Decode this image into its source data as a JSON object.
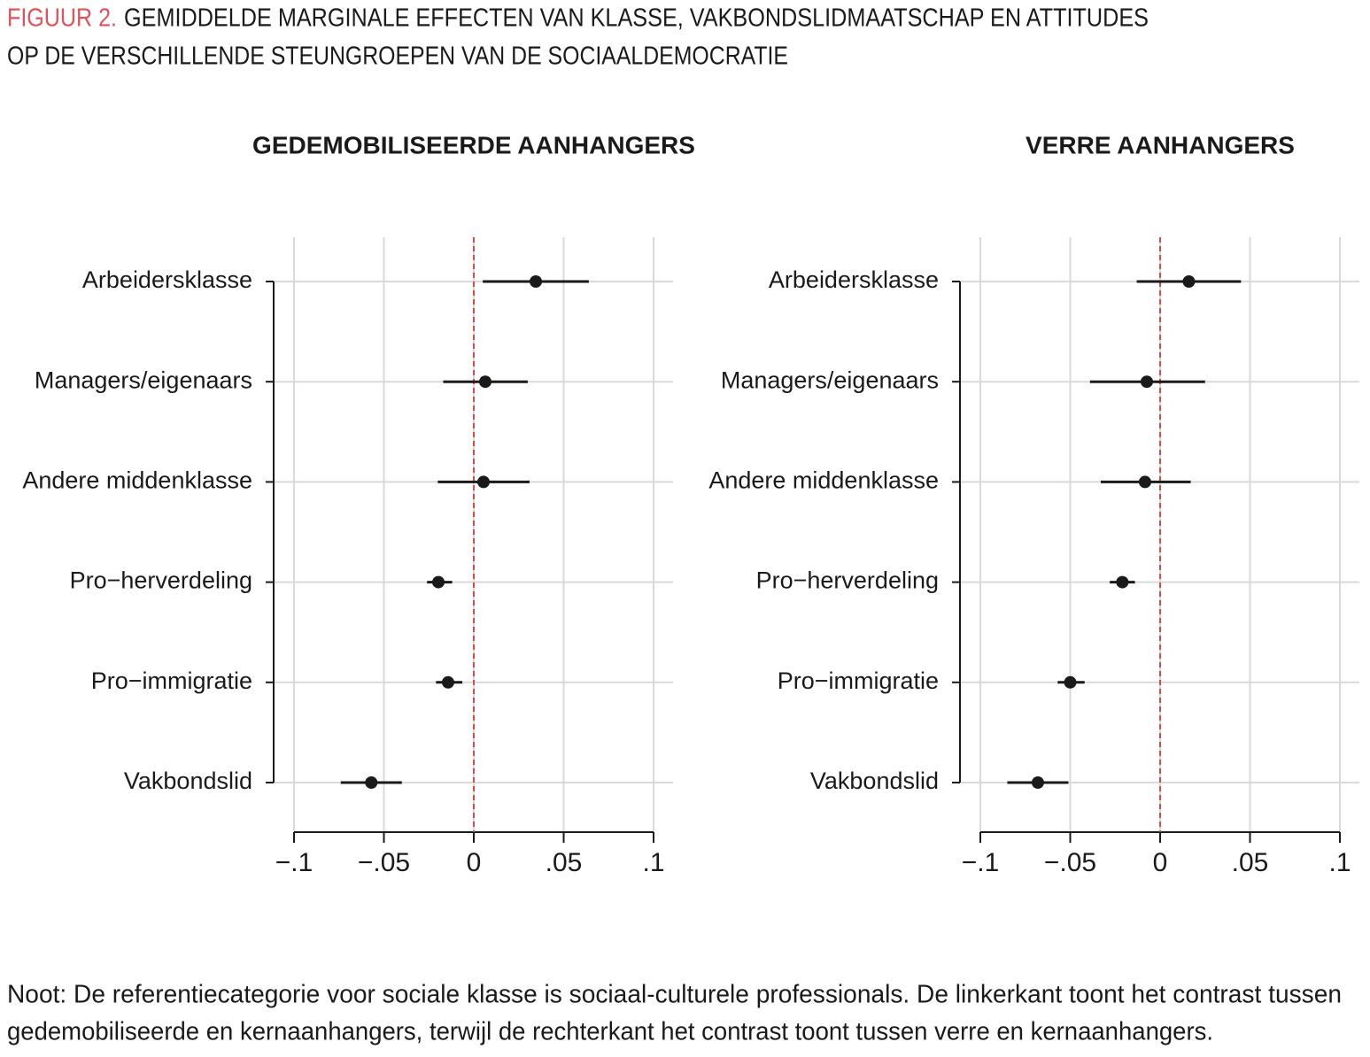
{
  "figure": {
    "label": "FIGUUR 2.",
    "title_lines": [
      "GEMIDDELDE MARGINALE EFFECTEN VAN KLASSE, VAKBONDSLIDMAATSCHAP EN ATTITUDES",
      "OP DE VERSCHILLENDE STEUNGROEPEN VAN DE SOCIAALDEMOCRATIE"
    ]
  },
  "note_lines": [
    "Noot: De referentiecategorie voor sociale klasse is sociaal-culturele professionals. De linkerkant toont het contrast tussen",
    "gedemobiliseerde en kernaanhangers, terwijl de rechterkant het contrast toont tussen verre en kernaanhangers."
  ],
  "chart_data": [
    {
      "type": "errorbar",
      "title": "GEDEMOBILISEERDE AANHANGERS",
      "categories": [
        "Arbeidersklasse",
        "Managers/eigenaars",
        "Andere middenklasse",
        "Pro−herverdeling",
        "Pro−immigratie",
        "Vakbondslid"
      ],
      "values": [
        0.0345,
        0.0064,
        0.0054,
        -0.0197,
        -0.0143,
        -0.057
      ],
      "ci_low": [
        0.005,
        -0.017,
        -0.02,
        -0.026,
        -0.021,
        -0.074
      ],
      "ci_high": [
        0.064,
        0.03,
        0.031,
        -0.012,
        -0.0064,
        -0.04
      ],
      "color": "#1a1a1a",
      "xlim": [
        -0.1,
        0.1
      ],
      "xticks": [
        {
          "value": -0.1,
          "label": "−.1"
        },
        {
          "value": -0.05,
          "label": "−.05"
        },
        0,
        {
          "value": 0.05,
          "label": ".05"
        },
        {
          "value": 0.1,
          "label": ".1"
        }
      ],
      "grid": true,
      "refline": {
        "value": 0,
        "color": "#e04848"
      }
    },
    {
      "type": "errorbar",
      "title": "VERRE AANHANGERS",
      "categories": [
        "Arbeidersklasse",
        "Managers/eigenaars",
        "Andere middenklasse",
        "Pro−herverdeling",
        "Pro−immigratie",
        "Vakbondslid"
      ],
      "values": [
        0.016,
        -0.0074,
        -0.0084,
        -0.021,
        -0.05,
        -0.068
      ],
      "ci_low": [
        -0.013,
        -0.039,
        -0.033,
        -0.028,
        -0.057,
        -0.085
      ],
      "ci_high": [
        0.045,
        0.025,
        0.017,
        -0.014,
        -0.042,
        -0.051
      ],
      "color": "#1a1a1a",
      "xlim": [
        -0.1,
        0.1
      ],
      "xticks": [
        {
          "value": -0.1,
          "label": "−.1"
        },
        {
          "value": -0.05,
          "label": "−.05"
        },
        0,
        {
          "value": 0.05,
          "label": ".05"
        },
        {
          "value": 0.1,
          "label": ".1"
        }
      ],
      "grid": true,
      "refline": {
        "value": 0,
        "color": "#e04848"
      }
    }
  ]
}
